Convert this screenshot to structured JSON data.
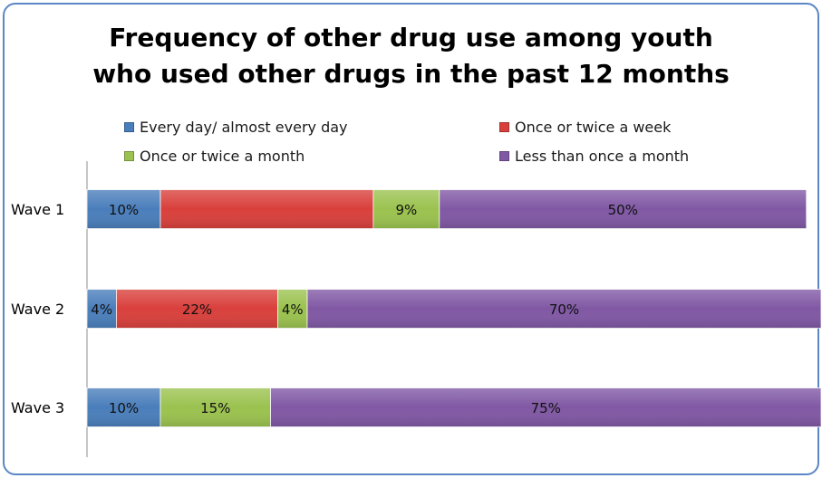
{
  "chart_data": {
    "type": "bar",
    "orientation": "horizontal",
    "stacked": true,
    "title": [
      "Frequency of other drug use among youth",
      "who used other drugs in the past 12 months"
    ],
    "categories": [
      "Wave 1",
      "Wave 2",
      "Wave 3"
    ],
    "series": [
      {
        "name": "Every day/ almost every day",
        "color": "#4a7ebb",
        "values": [
          10,
          4,
          10
        ],
        "labels": [
          "10%",
          "4%",
          "10%"
        ]
      },
      {
        "name": "Once or twice a week",
        "color": "#d9403c",
        "values": [
          29,
          22,
          0
        ],
        "labels": [
          "",
          "22%",
          ""
        ]
      },
      {
        "name": "Once or twice a month",
        "color": "#9bc24f",
        "values": [
          9,
          4,
          15
        ],
        "labels": [
          "9%",
          "4%",
          "15%"
        ]
      },
      {
        "name": "Less than once a month",
        "color": "#8058a4",
        "values": [
          50,
          70,
          75
        ],
        "labels": [
          "50%",
          "70%",
          "75%"
        ]
      }
    ],
    "xlim": [
      0,
      100
    ],
    "grid": false,
    "legend_position": "top"
  }
}
